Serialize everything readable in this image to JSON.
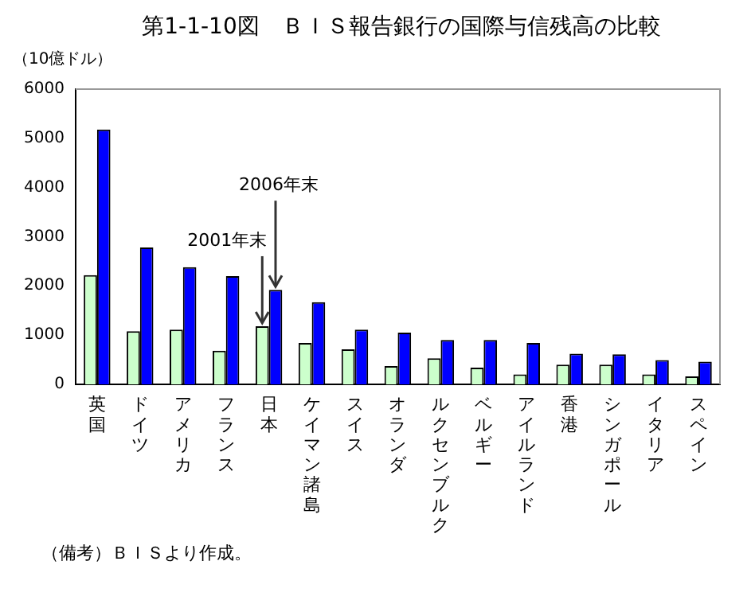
{
  "chart_data": {
    "type": "bar",
    "title": "第1-1-10図　ＢＩＳ報告銀行の国際与信残高の比較",
    "ylabel": "（10億ドル）",
    "categories": [
      "英国",
      "ドイツ",
      "アメリカ",
      "フランス",
      "日本",
      "ケイマン諸島",
      "スイス",
      "オランダ",
      "ルクセンブルク",
      "ベルギー",
      "アイルランド",
      "香港",
      "シンガポール",
      "イタリア",
      "スペイン"
    ],
    "series": [
      {
        "color": "#ccffcc",
        "values": [
          2220,
          1080,
          1110,
          680,
          1180,
          840,
          710,
          370,
          530,
          340,
          200,
          400,
          400,
          200,
          160
        ]
      },
      {
        "color": "#0000ff",
        "values": [
          5180,
          2780,
          2380,
          2200,
          1920,
          1670,
          1110,
          1050,
          900,
          900,
          840,
          620,
          610,
          490,
          460
        ]
      }
    ],
    "ylim": [
      0,
      6000
    ],
    "yticks": [
      0,
      1000,
      2000,
      3000,
      4000,
      5000,
      6000
    ],
    "grid": false,
    "legend": false,
    "annotations": [
      {
        "text": "2001年末",
        "x": "日本",
        "y": 1180
      },
      {
        "text": "2006年末",
        "x": "日本",
        "y": 1920
      },
      "（備考）ＢＩＳより作成。"
    ]
  }
}
